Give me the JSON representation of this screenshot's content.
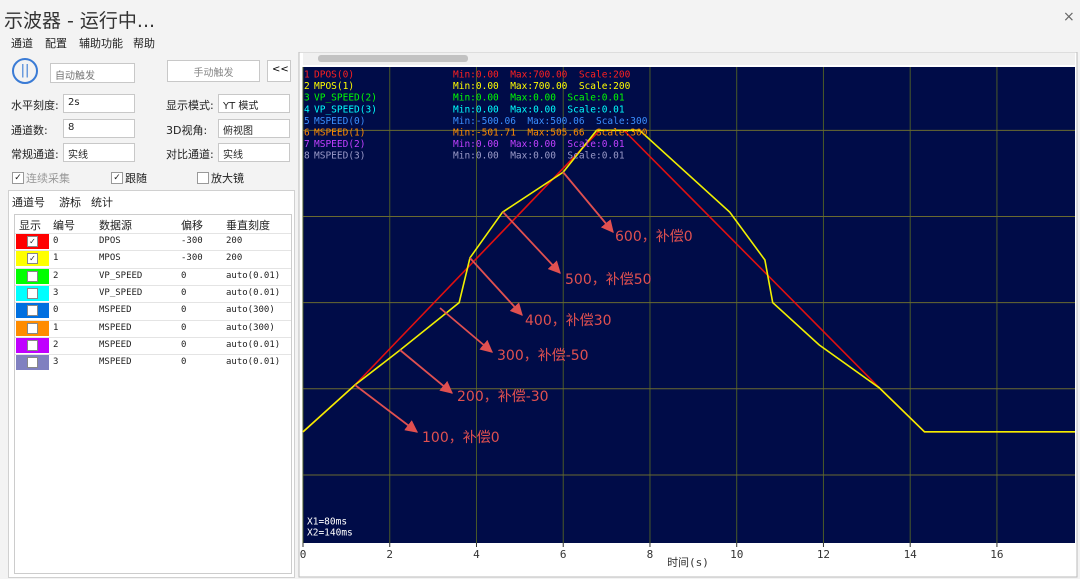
{
  "window": {
    "title": "示波器 - 运行中...",
    "close": "×"
  },
  "menu": [
    "通道",
    "配置",
    "辅助功能",
    "帮助"
  ],
  "controls": {
    "trigger_mode": "自动触发",
    "manual_trigger": "手动触发",
    "collapse": "<<",
    "fields": [
      {
        "label": "水平刻度:",
        "value": "2s"
      },
      {
        "label": "显示模式:",
        "value": "YT 模式"
      },
      {
        "label": "通道数:",
        "value": "8"
      },
      {
        "label": "3D视角:",
        "value": "俯视图"
      },
      {
        "label": "常规通道:",
        "value": "实线"
      },
      {
        "label": "对比通道:",
        "value": "实线"
      }
    ],
    "checks": [
      {
        "label": "连续采集",
        "checked": true
      },
      {
        "label": "跟随",
        "checked": true
      },
      {
        "label": "放大镜",
        "checked": false
      }
    ]
  },
  "tabs": [
    "通道号",
    "游标",
    "统计"
  ],
  "table": {
    "headers": [
      "显示",
      "编号",
      "数据源",
      "偏移",
      "垂直刻度"
    ],
    "rows": [
      {
        "color": "#ff0000",
        "checked": true,
        "cells": [
          "0",
          "DPOS",
          "-300",
          "200"
        ]
      },
      {
        "color": "#ffff00",
        "checked": true,
        "cells": [
          "1",
          "MPOS",
          "-300",
          "200"
        ]
      },
      {
        "color": "#00ff00",
        "checked": false,
        "cells": [
          "2",
          "VP_SPEED",
          "0",
          "auto(0.01)"
        ]
      },
      {
        "color": "#00ffff",
        "checked": false,
        "cells": [
          "3",
          "VP_SPEED",
          "0",
          "auto(0.01)"
        ]
      },
      {
        "color": "#0070e0",
        "checked": false,
        "cells": [
          "0",
          "MSPEED",
          "0",
          "auto(300)"
        ]
      },
      {
        "color": "#ff8c00",
        "checked": false,
        "cells": [
          "1",
          "MSPEED",
          "0",
          "auto(300)"
        ]
      },
      {
        "color": "#c000ff",
        "checked": false,
        "cells": [
          "2",
          "MSPEED",
          "0",
          "auto(0.01)"
        ]
      },
      {
        "color": "#8080c0",
        "checked": false,
        "cells": [
          "3",
          "MSPEED",
          "0",
          "auto(0.01)"
        ]
      }
    ]
  },
  "scope": {
    "type": "line",
    "xlabel": "时间(s)",
    "xlim": [
      0,
      17.8
    ],
    "xticks": [
      0,
      2,
      4,
      6,
      8,
      10,
      12,
      14,
      16
    ],
    "ylim": [
      -258,
      847
    ],
    "ygrid": [
      -100,
      100,
      300,
      500,
      700
    ],
    "channels": [
      {
        "index": "1",
        "name": "DPOS(0)",
        "stats": "Min:0.00  Max:700.00  Scale:200",
        "color": "#ff2020"
      },
      {
        "index": "2",
        "name": "MPOS(1)",
        "stats": "Min:0.00  Max:700.00  Scale:200",
        "color": "#ffff00"
      },
      {
        "index": "3",
        "name": "VP_SPEED(2)",
        "stats": "Min:0.00  Max:0.00  Scale:0.01",
        "color": "#00ff00"
      },
      {
        "index": "4",
        "name": "VP_SPEED(3)",
        "stats": "Min:0.00  Max:0.00  Scale:0.01",
        "color": "#00ffff"
      },
      {
        "index": "5",
        "name": "MSPEED(0)",
        "stats": "Min:-500.06  Max:500.06  Scale:300",
        "color": "#3a8fff"
      },
      {
        "index": "6",
        "name": "MSPEED(1)",
        "stats": "Min:-501.71  Max:505.66  Scale:300",
        "color": "#ff8c00"
      },
      {
        "index": "7",
        "name": "MSPEED(2)",
        "stats": "Min:0.00  Max:0.00  Scale:0.01",
        "color": "#c040ff"
      },
      {
        "index": "8",
        "name": "MSPEED(3)",
        "stats": "Min:0.00  Max:0.00  Scale:0.01",
        "color": "#9a9ac8"
      }
    ],
    "series": [
      {
        "color": "#e01010",
        "x": [
          0,
          1.2,
          6.84,
          7.4,
          13.29,
          14.33,
          17.8
        ],
        "values": [
          0,
          109,
          700,
          700,
          102,
          0,
          0
        ]
      },
      {
        "color": "#f0f000",
        "x": [
          0,
          1.2,
          2.24,
          3.6,
          3.85,
          4.6,
          6,
          6.77,
          7.76,
          9.84,
          10.65,
          10.83,
          11.9,
          13.29,
          14.33,
          17.8
        ],
        "values": [
          0,
          109,
          190,
          300,
          404,
          510,
          603,
          700,
          700,
          510,
          399,
          300,
          202,
          102,
          0,
          0
        ]
      }
    ],
    "cursors": [
      "X1=80ms",
      "X2=140ms"
    ],
    "annotations": [
      "600，补偿0",
      "500，补偿50",
      "400，补偿30",
      "300，补偿-50",
      "200，补偿-30",
      "100，补偿0"
    ]
  }
}
